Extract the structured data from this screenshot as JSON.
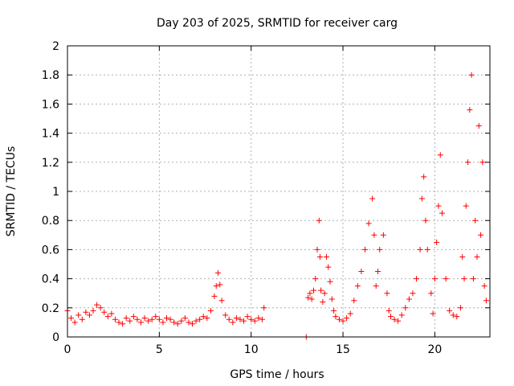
{
  "chart_data": {
    "type": "scatter",
    "title": "Day 203 of 2025, SRMTID for receiver carg",
    "xlabel": "GPS time / hours",
    "ylabel": "SRMTID / TECUs",
    "xlim": [
      0,
      23
    ],
    "ylim": [
      0,
      2
    ],
    "xticks": [
      0,
      5,
      10,
      15,
      20
    ],
    "yticks": [
      0,
      0.2,
      0.4,
      0.6,
      0.8,
      1,
      1.2,
      1.4,
      1.6,
      1.8,
      2
    ],
    "xtick_labels": [
      "0",
      "5",
      "10",
      "15",
      "20"
    ],
    "ytick_labels": [
      "0",
      "0.2",
      "0.4",
      "0.6",
      "0.8",
      "1",
      "1.2",
      "1.4",
      "1.6",
      "1.8",
      "2"
    ],
    "grid": true,
    "marker": "+",
    "color": "#ff0000",
    "series": [
      {
        "name": "SRMTID",
        "x": [
          0.0,
          0.2,
          0.4,
          0.6,
          0.8,
          1.0,
          1.2,
          1.4,
          1.6,
          1.8,
          2.0,
          2.2,
          2.4,
          2.6,
          2.8,
          3.0,
          3.2,
          3.4,
          3.6,
          3.8,
          4.0,
          4.2,
          4.4,
          4.6,
          4.8,
          5.0,
          5.2,
          5.4,
          5.6,
          5.8,
          6.0,
          6.2,
          6.4,
          6.6,
          6.8,
          7.0,
          7.2,
          7.4,
          7.6,
          7.8,
          8.0,
          8.1,
          8.2,
          8.3,
          8.4,
          8.6,
          8.8,
          9.0,
          9.2,
          9.4,
          9.6,
          9.8,
          10.0,
          10.2,
          10.4,
          10.6,
          10.7,
          13.0,
          13.1,
          13.2,
          13.3,
          13.4,
          13.5,
          13.6,
          13.7,
          13.75,
          13.8,
          13.9,
          14.0,
          14.1,
          14.2,
          14.3,
          14.4,
          14.5,
          14.6,
          14.8,
          15.0,
          15.2,
          15.4,
          15.6,
          15.8,
          16.0,
          16.2,
          16.4,
          16.6,
          16.7,
          16.8,
          16.9,
          17.0,
          17.2,
          17.4,
          17.5,
          17.6,
          17.8,
          18.0,
          18.2,
          18.4,
          18.6,
          18.8,
          19.0,
          19.2,
          19.3,
          19.4,
          19.5,
          19.6,
          19.8,
          19.9,
          20.0,
          20.1,
          20.2,
          20.3,
          20.4,
          20.6,
          20.8,
          21.0,
          21.2,
          21.4,
          21.5,
          21.6,
          21.7,
          21.8,
          21.9,
          22.0,
          22.1,
          22.2,
          22.3,
          22.4,
          22.5,
          22.6,
          22.7,
          22.8
        ],
        "y": [
          0.18,
          0.13,
          0.1,
          0.15,
          0.12,
          0.17,
          0.15,
          0.18,
          0.22,
          0.2,
          0.17,
          0.14,
          0.16,
          0.12,
          0.1,
          0.09,
          0.13,
          0.11,
          0.14,
          0.12,
          0.1,
          0.13,
          0.11,
          0.12,
          0.14,
          0.12,
          0.1,
          0.13,
          0.12,
          0.1,
          0.09,
          0.11,
          0.13,
          0.1,
          0.09,
          0.11,
          0.12,
          0.14,
          0.13,
          0.18,
          0.28,
          0.35,
          0.44,
          0.36,
          0.25,
          0.15,
          0.12,
          0.1,
          0.13,
          0.12,
          0.11,
          0.14,
          0.12,
          0.11,
          0.13,
          0.12,
          0.2,
          0.0,
          0.27,
          0.3,
          0.26,
          0.32,
          0.4,
          0.6,
          0.8,
          0.55,
          0.32,
          0.24,
          0.3,
          0.55,
          0.48,
          0.38,
          0.26,
          0.18,
          0.14,
          0.12,
          0.11,
          0.13,
          0.16,
          0.25,
          0.35,
          0.45,
          0.6,
          0.78,
          0.95,
          0.7,
          0.35,
          0.45,
          0.6,
          0.7,
          0.3,
          0.18,
          0.14,
          0.12,
          0.11,
          0.15,
          0.2,
          0.26,
          0.3,
          0.4,
          0.6,
          0.95,
          1.1,
          0.8,
          0.6,
          0.3,
          0.16,
          0.4,
          0.65,
          0.9,
          1.25,
          0.85,
          0.4,
          0.18,
          0.15,
          0.14,
          0.2,
          0.55,
          0.4,
          0.9,
          1.2,
          1.56,
          1.8,
          0.4,
          0.8,
          0.55,
          1.45,
          0.7,
          1.2,
          0.35,
          0.25
        ]
      }
    ]
  }
}
